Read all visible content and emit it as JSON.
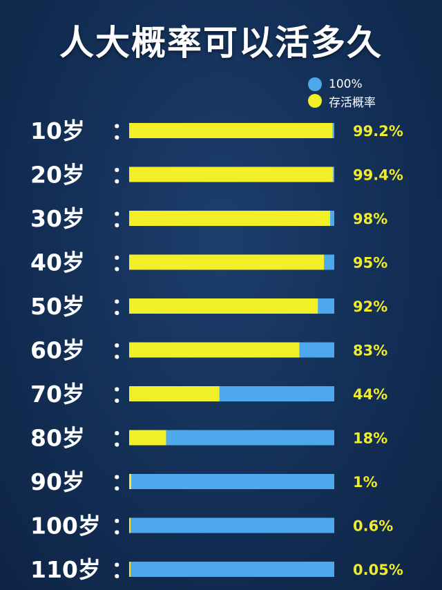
{
  "colors": {
    "background": "#143159",
    "full": "#4ea9ec",
    "survival": "#f1ef25",
    "value_text": "#f0ec2a"
  },
  "chart_data": {
    "type": "bar",
    "orientation": "horizontal",
    "title": "人大概率可以活多久",
    "legend": {
      "placement": "top-right",
      "entries": [
        {
          "label": "100%",
          "color": "#4ea9ec"
        },
        {
          "label": "存活概率",
          "color": "#f1ef25"
        }
      ]
    },
    "categories": [
      "10岁",
      "20岁",
      "30岁",
      "40岁",
      "50岁",
      "60岁",
      "70岁",
      "80岁",
      "90岁",
      "100岁",
      "110岁"
    ],
    "series": [
      {
        "name": "100%",
        "values": [
          100,
          100,
          100,
          100,
          100,
          100,
          100,
          100,
          100,
          100,
          100
        ]
      },
      {
        "name": "存活概率",
        "values": [
          99.2,
          99.4,
          98,
          95,
          92,
          83,
          44,
          18,
          1,
          0.6,
          0.05
        ]
      }
    ],
    "value_labels": [
      "99.2%",
      "99.4%",
      "98%",
      "95%",
      "92%",
      "83%",
      "44%",
      "18%",
      "1%",
      "0.6%",
      "0.05%"
    ],
    "separator": "：",
    "xlim": [
      0,
      100
    ],
    "grid": false
  }
}
